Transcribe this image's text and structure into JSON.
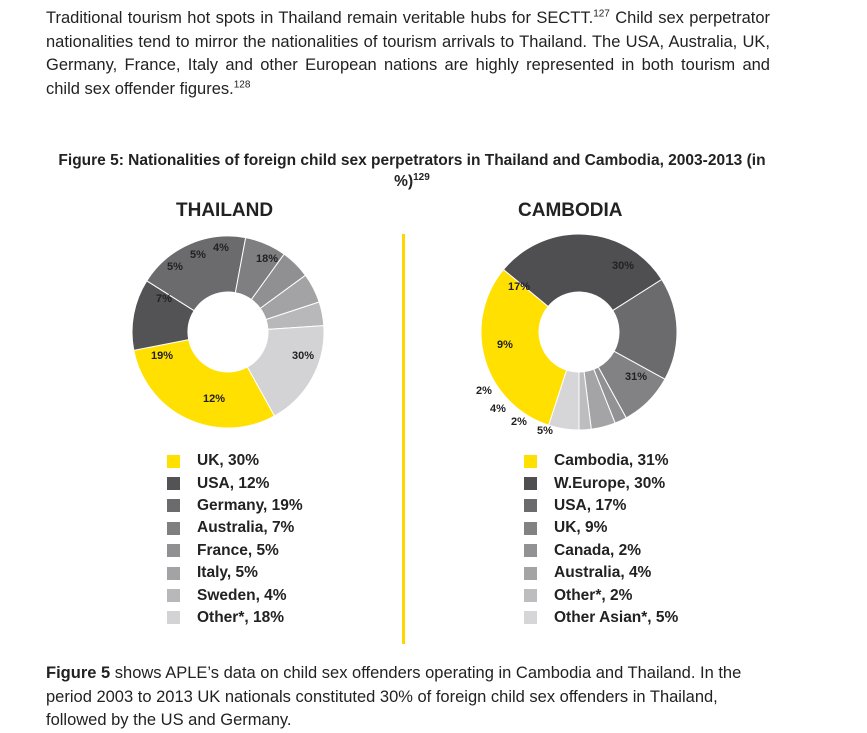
{
  "intro": {
    "text": "Traditional tourism hot spots in Thailand remain veritable hubs for SECTT.",
    "ref1": "127",
    "text2": " Child sex perpetrator nationalities tend to mirror the nationalities of tourism arrivals to Thailand. The USA, Australia, UK, Germany, France, Italy and other European nations are highly represented in both tourism and child sex offender figures.",
    "ref2": "128"
  },
  "figure": {
    "title": "Figure 5: Nationalities of foreign child sex perpetrators in Thailand and Cambodia, 2003-2013 (in %)",
    "ref": "129"
  },
  "chart_data": [
    {
      "type": "pie",
      "title": "THAILAND",
      "unit": "%",
      "slices": [
        {
          "label": "UK",
          "value": 30,
          "display": "30%",
          "legend": "UK, 30%",
          "color": "#ffe000"
        },
        {
          "label": "USA",
          "value": 12,
          "display": "12%",
          "legend": "USA, 12%",
          "color": "#535356"
        },
        {
          "label": "Germany",
          "value": 19,
          "display": "19%",
          "legend": "Germany, 19%",
          "color": "#6b6b6e"
        },
        {
          "label": "Australia",
          "value": 7,
          "display": "7%",
          "legend": "Australia, 7%",
          "color": "#7f7f82"
        },
        {
          "label": "France",
          "value": 5,
          "display": "5%",
          "legend": "France, 5%",
          "color": "#909093"
        },
        {
          "label": "Italy",
          "value": 5,
          "display": "5%",
          "legend": "Italy, 5%",
          "color": "#a3a3a6"
        },
        {
          "label": "Sweden",
          "value": 4,
          "display": "4%",
          "legend": "Sweden, 4%",
          "color": "#b8b8ba"
        },
        {
          "label": "Other*",
          "value": 18,
          "display": "18%",
          "legend": "Other*, 18%",
          "color": "#d3d3d5"
        }
      ]
    },
    {
      "type": "pie",
      "title": "CAMBODIA",
      "unit": "%",
      "slices": [
        {
          "label": "Cambodia",
          "value": 31,
          "display": "31%",
          "legend": "Cambodia, 31%",
          "color": "#ffe000"
        },
        {
          "label": "W.Europe",
          "value": 30,
          "display": "30%",
          "legend": "W.Europe, 30%",
          "color": "#4f4f52"
        },
        {
          "label": "USA",
          "value": 17,
          "display": "17%",
          "legend": "USA, 17%",
          "color": "#6b6b6e"
        },
        {
          "label": "UK",
          "value": 9,
          "display": "9%",
          "legend": "UK, 9%",
          "color": "#828285"
        },
        {
          "label": "Canada",
          "value": 2,
          "display": "2%",
          "legend": "Canada, 2%",
          "color": "#929295"
        },
        {
          "label": "Australia",
          "value": 4,
          "display": "4%",
          "legend": "Australia, 4%",
          "color": "#a4a4a7"
        },
        {
          "label": "Other*",
          "value": 2,
          "display": "2%",
          "legend": "Other*, 2%",
          "color": "#bdbdbf"
        },
        {
          "label": "Other Asian*",
          "value": 5,
          "display": "5%",
          "legend": "Other Asian*, 5%",
          "color": "#d6d6d8"
        }
      ]
    }
  ],
  "summary": {
    "lead": "Figure 5",
    "text": " shows APLE’s data on child sex offenders operating in Cambodia and Thailand. In the period 2003 to 2013 UK nationals constituted 30% of foreign child sex offenders in Thailand, followed by the US and Germany."
  }
}
